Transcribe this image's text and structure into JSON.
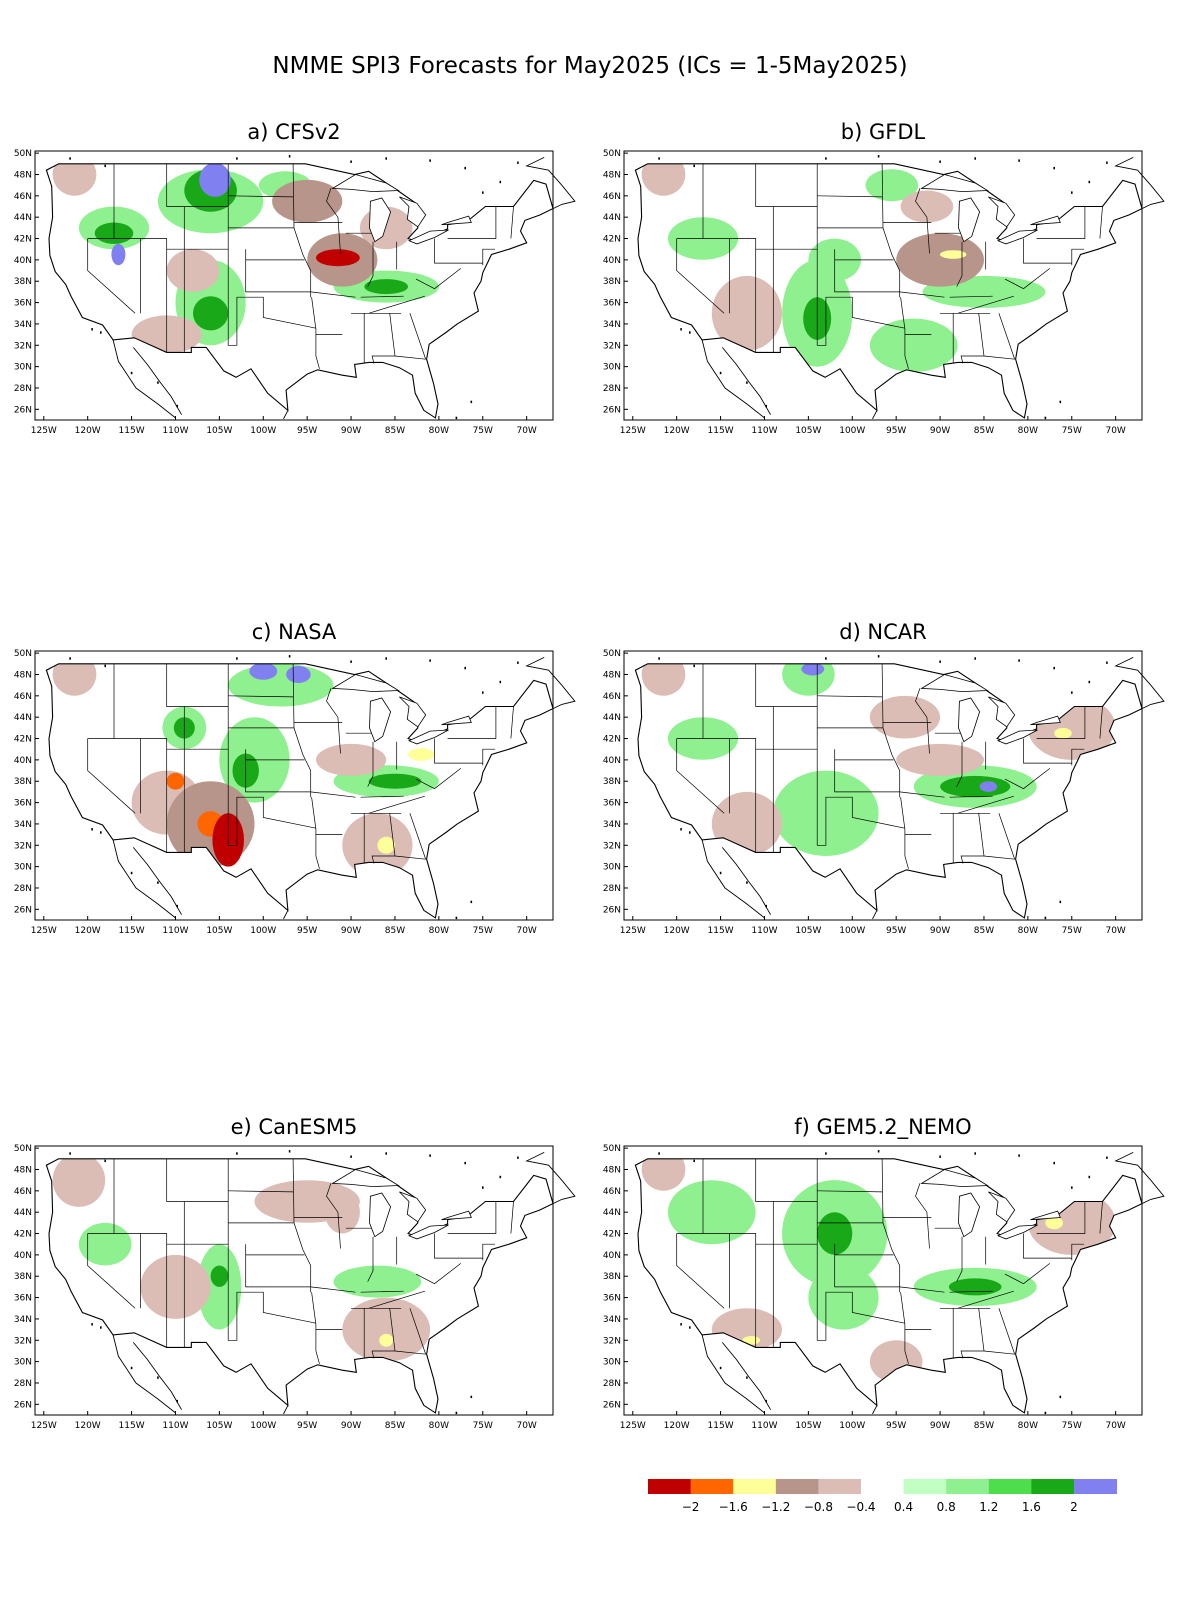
{
  "figure_title": "NMME SPI3 Forecasts for May2025 (ICs = 1-5May2025)",
  "lat_labels": [
    "50N",
    "48N",
    "46N",
    "44N",
    "42N",
    "40N",
    "38N",
    "36N",
    "34N",
    "32N",
    "30N",
    "28N",
    "26N"
  ],
  "lon_labels": [
    "125W",
    "120W",
    "115W",
    "110W",
    "105W",
    "100W",
    "95W",
    "90W",
    "85W",
    "80W",
    "75W",
    "70W"
  ],
  "colorbar": {
    "colors": [
      "#c00000",
      "#ff6600",
      "#ffff99",
      "#b8958a",
      "#dbbdb5",
      "#ffffff",
      "#c2ffc2",
      "#8ff08f",
      "#4ddd4d",
      "#18a818",
      "#8080f0"
    ],
    "labels": [
      "-2",
      "-1.6",
      "-1.2",
      "-0.8",
      "-0.4",
      "0.4",
      "0.8",
      "1.2",
      "1.6",
      "2"
    ]
  },
  "panels": [
    {
      "id": "a",
      "label": "a)",
      "model": "CFSv2",
      "blobs": [
        [
          "green",
          -117,
          43,
          4,
          2
        ],
        [
          "dkgreen",
          -117,
          42.5,
          2.2,
          1
        ],
        [
          "blue",
          -116.5,
          40.5,
          0.8,
          1
        ],
        [
          "green",
          -106,
          45.5,
          6,
          3
        ],
        [
          "dkgreen",
          -106,
          46.5,
          3,
          2
        ],
        [
          "blue",
          -105.5,
          47.5,
          1.8,
          1.6
        ],
        [
          "green",
          -106,
          36,
          4,
          4
        ],
        [
          "dkgreen",
          -106,
          35,
          2,
          1.6
        ],
        [
          "brown",
          -91,
          40,
          4,
          2.5
        ],
        [
          "red",
          -91.5,
          40.2,
          2.5,
          0.8
        ],
        [
          "green",
          -86,
          37.5,
          6,
          1.5
        ],
        [
          "dkgreen",
          -86,
          37.5,
          2.5,
          0.7
        ],
        [
          "brown",
          -95,
          45.5,
          4,
          2
        ],
        [
          "lbrown",
          -86,
          43,
          3,
          2
        ],
        [
          "lbrown",
          -121.5,
          48,
          2.5,
          2
        ],
        [
          "lbrown",
          -111,
          33,
          4,
          1.8
        ],
        [
          "lbrown",
          -108,
          39,
          3,
          2
        ],
        [
          "green",
          -97.5,
          47,
          3,
          1.3
        ]
      ]
    },
    {
      "id": "b",
      "label": "b)",
      "model": "GFDL",
      "blobs": [
        [
          "green",
          -117,
          42,
          4,
          2
        ],
        [
          "green",
          -104,
          35,
          4,
          5
        ],
        [
          "dkgreen",
          -104,
          34.5,
          1.6,
          2
        ],
        [
          "lbrown",
          -112,
          35,
          4,
          3.5
        ],
        [
          "brown",
          -90,
          40,
          5,
          2.5
        ],
        [
          "yellow",
          -88.5,
          40.5,
          1.5,
          0.4
        ],
        [
          "green",
          -85,
          37,
          7,
          1.5
        ],
        [
          "green",
          -93,
          32,
          5,
          2.5
        ],
        [
          "green",
          -95.5,
          47,
          3,
          1.5
        ],
        [
          "lbrown",
          -121.5,
          48,
          2.5,
          2
        ],
        [
          "lbrown",
          -91.5,
          45,
          3,
          1.5
        ],
        [
          "green",
          -102,
          40,
          3,
          2
        ]
      ]
    },
    {
      "id": "c",
      "label": "c)",
      "model": "NASA",
      "blobs": [
        [
          "dkbrown",
          -106,
          34,
          5,
          4
        ],
        [
          "red",
          -104,
          32.5,
          1.8,
          2.5
        ],
        [
          "orange",
          -106,
          34,
          1.5,
          1.2
        ],
        [
          "orange",
          -110,
          38,
          1,
          0.8
        ],
        [
          "green",
          -101,
          40,
          4,
          4
        ],
        [
          "dkgreen",
          -102,
          39,
          1.5,
          1.6
        ],
        [
          "green",
          -86,
          38,
          6,
          1.5
        ],
        [
          "dkgreen",
          -85,
          38,
          3,
          0.7
        ],
        [
          "lbrown",
          -87,
          32,
          4,
          3
        ],
        [
          "yellow",
          -86,
          32,
          1,
          0.8
        ],
        [
          "lbrown",
          -90,
          40,
          4,
          1.5
        ],
        [
          "yellow",
          -82,
          40.5,
          1.5,
          0.6
        ],
        [
          "blue",
          -100,
          48.3,
          1.6,
          0.8
        ],
        [
          "blue",
          -96,
          48,
          1.4,
          0.8
        ],
        [
          "green",
          -98,
          47,
          6,
          2
        ],
        [
          "green",
          -109,
          43,
          2.5,
          2
        ],
        [
          "dkgreen",
          -109,
          43,
          1.2,
          1
        ],
        [
          "lbrown",
          -121.5,
          48,
          2.5,
          2
        ],
        [
          "lbrown",
          -111,
          36,
          4,
          3
        ]
      ]
    },
    {
      "id": "d",
      "label": "d)",
      "model": "NCAR",
      "blobs": [
        [
          "green",
          -103,
          35,
          6,
          4
        ],
        [
          "dkgreen",
          -86,
          37.5,
          4,
          1
        ],
        [
          "blue",
          -84.5,
          37.5,
          1,
          0.5
        ],
        [
          "green",
          -86,
          37.5,
          7,
          2
        ],
        [
          "lbrown",
          -75,
          43,
          5,
          3
        ],
        [
          "yellow",
          -76,
          42.5,
          1,
          0.5
        ],
        [
          "lbrown",
          -90,
          40,
          5,
          1.5
        ],
        [
          "lbrown",
          -94,
          44,
          4,
          2
        ],
        [
          "green",
          -105,
          48,
          3,
          2
        ],
        [
          "blue",
          -104.5,
          48.5,
          1.3,
          0.6
        ],
        [
          "green",
          -117,
          42,
          4,
          2
        ],
        [
          "lbrown",
          -112,
          34,
          4,
          3
        ],
        [
          "lbrown",
          -121.5,
          48,
          2.5,
          2
        ]
      ]
    },
    {
      "id": "e",
      "label": "e)",
      "model": "CanESM5",
      "blobs": [
        [
          "green",
          -105,
          37,
          2.5,
          4
        ],
        [
          "dkgreen",
          -105,
          38,
          1,
          1
        ],
        [
          "lbrown",
          -86,
          33,
          5,
          3
        ],
        [
          "yellow",
          -86,
          32,
          0.8,
          0.6
        ],
        [
          "green",
          -87,
          37.5,
          5,
          1.5
        ],
        [
          "lbrown",
          -95,
          45,
          6,
          2
        ],
        [
          "lbrown",
          -110,
          37,
          4,
          3
        ],
        [
          "green",
          -118,
          41,
          3,
          2
        ],
        [
          "lbrown",
          -121,
          47,
          3,
          2.5
        ],
        [
          "lbrown",
          -91,
          44,
          2,
          2
        ]
      ]
    },
    {
      "id": "f",
      "label": "f)",
      "model": "GEM5.2_NEMO",
      "blobs": [
        [
          "green",
          -102,
          42,
          6,
          5
        ],
        [
          "dkgreen",
          -102,
          42,
          2,
          2
        ],
        [
          "green",
          -86,
          37,
          7,
          1.8
        ],
        [
          "dkgreen",
          -86,
          37,
          3,
          0.8
        ],
        [
          "lbrown",
          -75,
          43,
          5,
          3
        ],
        [
          "yellow",
          -77,
          43,
          1,
          0.6
        ],
        [
          "green",
          -116,
          44,
          5,
          3
        ],
        [
          "lbrown",
          -112,
          33,
          4,
          2
        ],
        [
          "yellow",
          -111.5,
          32,
          1,
          0.4
        ],
        [
          "lbrown",
          -95,
          30,
          3,
          2
        ],
        [
          "lbrown",
          -121.5,
          48,
          2.5,
          2
        ],
        [
          "green",
          -101,
          36,
          4,
          3
        ]
      ]
    }
  ]
}
